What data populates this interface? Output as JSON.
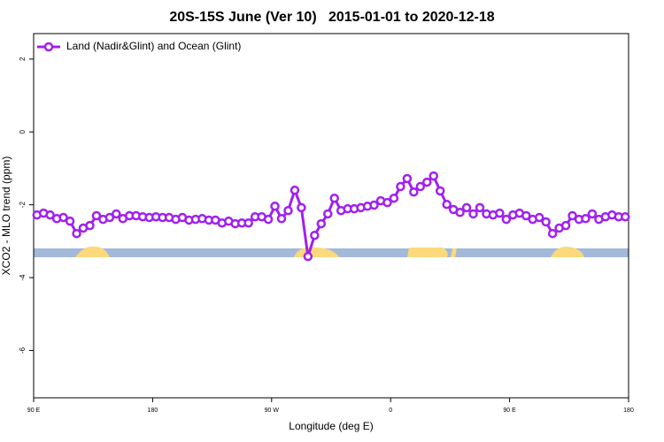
{
  "chart_data": {
    "type": "line",
    "title": "20S-15S June (Ver 10)   2015-01-01 to 2020-12-18",
    "x_label": "Longitude (deg E)",
    "y_label": "XCO2 - MLO trend (ppm)",
    "x": [
      92.5,
      97.5,
      102.5,
      107.5,
      112.5,
      117.5,
      122.5,
      127.5,
      132.5,
      137.5,
      142.5,
      147.5,
      152.5,
      157.5,
      162.5,
      167.5,
      172.5,
      177.5,
      182.5,
      187.5,
      192.5,
      197.5,
      202.5,
      207.5,
      212.5,
      217.5,
      222.5,
      227.5,
      232.5,
      237.5,
      242.5,
      247.5,
      252.5,
      257.5,
      262.5,
      267.5,
      272.5,
      277.5,
      282.5,
      287.5,
      292.5,
      297.5,
      302.5,
      307.5,
      312.5,
      317.5,
      322.5,
      327.5,
      332.5,
      337.5,
      342.5,
      347.5,
      352.5,
      357.5,
      362.5,
      367.5,
      372.5,
      377.5,
      382.5,
      387.5,
      392.5,
      397.5,
      402.5,
      407.5,
      412.5,
      417.5,
      422.5,
      427.5,
      432.5,
      437.5,
      442.5,
      447.5,
      452.5,
      457.5,
      462.5,
      467.5,
      472.5,
      477.5,
      482.5,
      487.5,
      492.5,
      497.5,
      502.5,
      507.5,
      512.5,
      517.5,
      522.5,
      527.5,
      532.5,
      537.5
    ],
    "series": [
      {
        "name": "Land (Nadir&Glint) and Ocean (Glint)",
        "color": "#a020f0",
        "values": [
          -2.28,
          -2.23,
          -2.28,
          -2.38,
          -2.35,
          -2.45,
          -2.79,
          -2.64,
          -2.57,
          -2.3,
          -2.4,
          -2.35,
          -2.25,
          -2.38,
          -2.3,
          -2.3,
          -2.33,
          -2.35,
          -2.33,
          -2.35,
          -2.35,
          -2.4,
          -2.35,
          -2.42,
          -2.4,
          -2.38,
          -2.42,
          -2.42,
          -2.5,
          -2.45,
          -2.52,
          -2.5,
          -2.5,
          -2.33,
          -2.33,
          -2.4,
          -2.04,
          -2.38,
          -2.16,
          -1.6,
          -2.08,
          -3.42,
          -2.84,
          -2.52,
          -2.25,
          -1.82,
          -2.16,
          -2.11,
          -2.11,
          -2.08,
          -2.04,
          -2.01,
          -1.89,
          -1.94,
          -1.82,
          -1.5,
          -1.28,
          -1.65,
          -1.5,
          -1.38,
          -1.21,
          -1.62,
          -1.99,
          -2.13,
          -2.21,
          -2.08,
          -2.25,
          -2.08,
          -2.25,
          -2.28,
          -2.23,
          -2.4,
          -2.28,
          -2.23,
          -2.3,
          -2.4,
          -2.35,
          -2.47,
          -2.79,
          -2.64,
          -2.57,
          -2.3,
          -2.4,
          -2.38,
          -2.25,
          -2.4,
          -2.33,
          -2.28,
          -2.33,
          -2.33
        ]
      }
    ],
    "xlim": [
      90,
      540
    ],
    "xticks": [
      {
        "value": 90,
        "label": "90 E"
      },
      180,
      {
        "value": 270,
        "label": "90 W"
      },
      {
        "value": 360,
        "label": "0"
      },
      {
        "value": 450,
        "label": "90 E"
      },
      {
        "value": 540,
        "label": "180"
      }
    ],
    "ylim": [
      -7.3,
      2.7
    ],
    "yticks": [
      2,
      0,
      -2,
      -4,
      -6
    ],
    "legend": "top-left"
  }
}
